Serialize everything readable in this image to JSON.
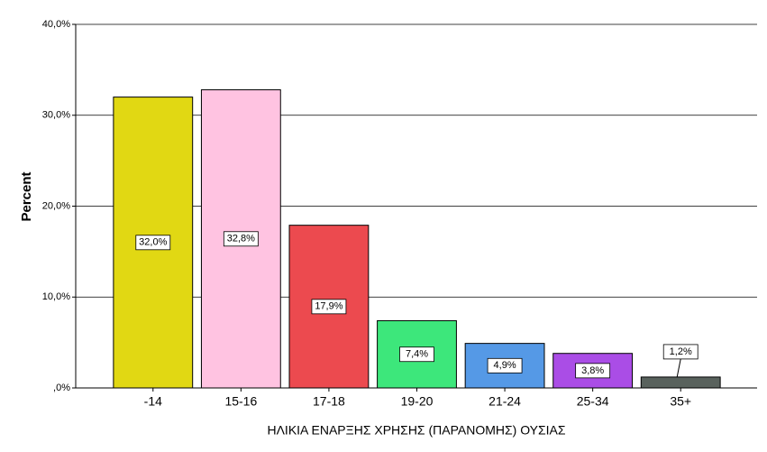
{
  "chart_data": {
    "type": "bar",
    "x_label": "ΗΛΙΚΙΑ ΕΝΑΡΞΗΣ ΧΡΗΣΗΣ (ΠΑΡΑΝΟΜΗΣ) ΟΥΣΙΑΣ",
    "y_label": "Percent",
    "categories": [
      "-14",
      "15-16",
      "17-18",
      "19-20",
      "21-24",
      "25-34",
      "35+"
    ],
    "values": [
      32.0,
      32.8,
      17.9,
      7.4,
      4.9,
      3.8,
      1.2
    ],
    "value_labels": [
      "32,0%",
      "32,8%",
      "17,9%",
      "7,4%",
      "4,9%",
      "3,8%",
      "1,2%"
    ],
    "colors": [
      "#e1d813",
      "#ffc3e1",
      "#ec4a4f",
      "#3de77b",
      "#5599e6",
      "#aa4de6",
      "#59625d"
    ],
    "ylim": [
      0,
      40
    ],
    "yticks": [
      {
        "value": 0,
        "label": ",0%"
      },
      {
        "value": 10,
        "label": "10,0%"
      },
      {
        "value": 20,
        "label": "20,0%"
      },
      {
        "value": 30,
        "label": "30,0%"
      },
      {
        "value": 40,
        "label": "40,0%"
      }
    ],
    "grid": true
  }
}
